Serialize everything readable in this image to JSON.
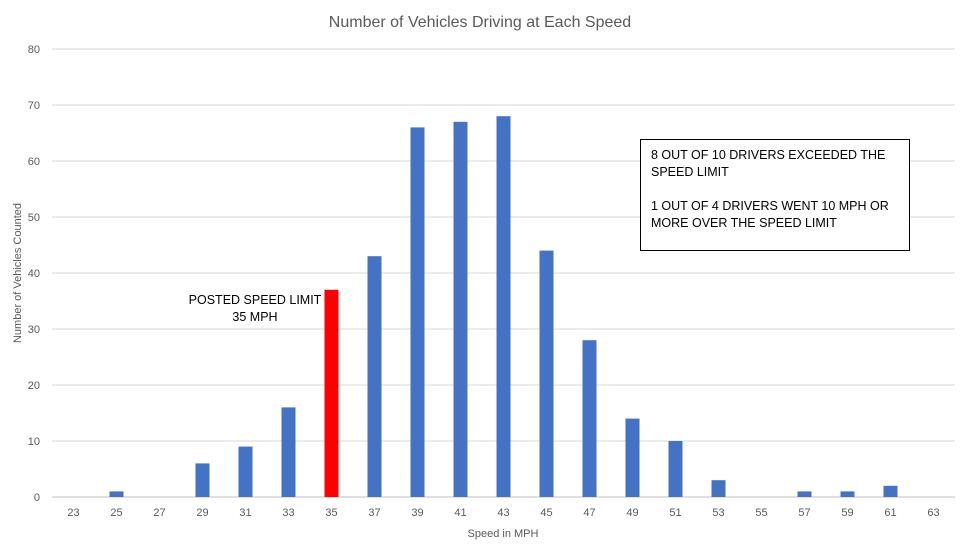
{
  "chart_data": {
    "type": "bar",
    "title": "Number of Vehicles Driving at Each Speed",
    "xlabel": "Speed in MPH",
    "ylabel": "Number of Vehicles Counted",
    "ylim": [
      0,
      80
    ],
    "yticks": [
      "0",
      "10",
      "20",
      "30",
      "40",
      "50",
      "60",
      "70",
      "80"
    ],
    "categories": [
      "23",
      "25",
      "27",
      "29",
      "31",
      "33",
      "35",
      "37",
      "39",
      "41",
      "43",
      "45",
      "47",
      "49",
      "51",
      "53",
      "55",
      "57",
      "59",
      "61",
      "63"
    ],
    "values": [
      0,
      1,
      0,
      6,
      9,
      16,
      37,
      43,
      66,
      67,
      68,
      44,
      28,
      14,
      10,
      3,
      0,
      1,
      1,
      2,
      0
    ],
    "highlight_category": "35",
    "grid": true,
    "legend": "none"
  },
  "colors": {
    "bar": "#4472C4",
    "highlight": "#FF0000",
    "grid": "#D9D9D9",
    "text": "#595959"
  },
  "annotations": {
    "box_line1": "8 OUT OF 10 DRIVERS EXCEEDED THE SPEED LIMIT",
    "box_line2": "1 OUT OF 4 DRIVERS WENT 10 MPH OR MORE OVER THE SPEED LIMIT",
    "speed_limit_line1": "POSTED SPEED LIMIT",
    "speed_limit_line2": "35 MPH"
  }
}
